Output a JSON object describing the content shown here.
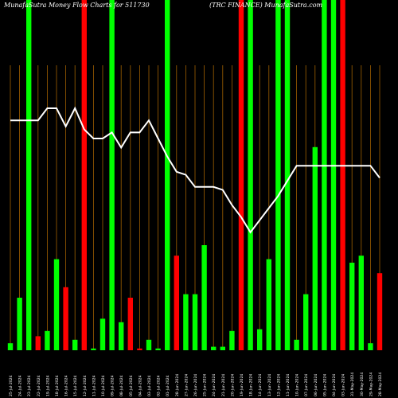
{
  "chart_data": {
    "type": "bar",
    "title_left": "MunafaSutra  Money Flow  Charts for 511730",
    "title_right": "(TRC FINANCE) MunafaSutra.com",
    "colors": {
      "up": "#00ff00",
      "down": "#ff0000",
      "grid": "#a06000",
      "line": "#ffffff",
      "background": "#000000"
    },
    "ylim": [
      0,
      100
    ],
    "price_ylim": [
      0,
      100
    ],
    "bars": [
      {
        "date": "25 Jul 2024",
        "value": 2,
        "dir": "up"
      },
      {
        "date": "24 Jul 2024",
        "value": 15,
        "dir": "up"
      },
      {
        "date": "23 Jul 2024",
        "value": 100,
        "dir": "up"
      },
      {
        "date": "22 Jul 2024",
        "value": 4,
        "dir": "down"
      },
      {
        "date": "19 Jul 2024",
        "value": 5.5,
        "dir": "up"
      },
      {
        "date": "18 Jul 2024",
        "value": 26,
        "dir": "up"
      },
      {
        "date": "16 Jul 2024",
        "value": 18,
        "dir": "down"
      },
      {
        "date": "15 Jul 2024",
        "value": 3,
        "dir": "up"
      },
      {
        "date": "12 Jul 2024",
        "value": 100,
        "dir": "down"
      },
      {
        "date": "11 Jul 2024",
        "value": 0.5,
        "dir": "up"
      },
      {
        "date": "10 Jul 2024",
        "value": 9,
        "dir": "up"
      },
      {
        "date": "09 Jul 2024",
        "value": 100,
        "dir": "up"
      },
      {
        "date": "08 Jul 2024",
        "value": 8,
        "dir": "up"
      },
      {
        "date": "05 Jul 2024",
        "value": 15,
        "dir": "down"
      },
      {
        "date": "04 Jul 2024",
        "value": 0.5,
        "dir": "down"
      },
      {
        "date": "03 Jul 2024",
        "value": 3,
        "dir": "up"
      },
      {
        "date": "02 Jul 2024",
        "value": 0.5,
        "dir": "up"
      },
      {
        "date": "01 Jul 2024",
        "value": 100,
        "dir": "up"
      },
      {
        "date": "28 Jun 2024",
        "value": 27,
        "dir": "down"
      },
      {
        "date": "27 Jun 2024",
        "value": 16,
        "dir": "up"
      },
      {
        "date": "26 Jun 2024",
        "value": 16,
        "dir": "up"
      },
      {
        "date": "25 Jun 2024",
        "value": 30,
        "dir": "up"
      },
      {
        "date": "24 Jun 2024",
        "value": 1,
        "dir": "up"
      },
      {
        "date": "21 Jun 2024",
        "value": 1,
        "dir": "up"
      },
      {
        "date": "20 Jun 2024",
        "value": 5.5,
        "dir": "up"
      },
      {
        "date": "19 Jun 2024",
        "value": 100,
        "dir": "down"
      },
      {
        "date": "18 Jun 2024",
        "value": 100,
        "dir": "up"
      },
      {
        "date": "14 Jun 2024",
        "value": 6,
        "dir": "up"
      },
      {
        "date": "13 Jun 2024",
        "value": 26,
        "dir": "up"
      },
      {
        "date": "12 Jun 2024",
        "value": 100,
        "dir": "up"
      },
      {
        "date": "11 Jun 2024",
        "value": 100,
        "dir": "up"
      },
      {
        "date": "10 Jun 2024",
        "value": 3,
        "dir": "up"
      },
      {
        "date": "07 Jun 2024",
        "value": 16,
        "dir": "up"
      },
      {
        "date": "06 Jun 2024",
        "value": 58,
        "dir": "up"
      },
      {
        "date": "05 Jun 2024",
        "value": 100,
        "dir": "up"
      },
      {
        "date": "04 Jun 2024",
        "value": 100,
        "dir": "up"
      },
      {
        "date": "03 Jun 2024",
        "value": 100,
        "dir": "down"
      },
      {
        "date": "31 May 2024",
        "value": 25,
        "dir": "up"
      },
      {
        "date": "30 May 2024",
        "value": 27,
        "dir": "up"
      },
      {
        "date": "29 May 2024",
        "value": 2,
        "dir": "up"
      },
      {
        "date": "28 May 2024",
        "value": 22,
        "dir": "down"
      }
    ],
    "price_line": [
      {
        "index": 0,
        "value": 76
      },
      {
        "index": 1,
        "value": 76
      },
      {
        "index": 2,
        "value": 76
      },
      {
        "index": 3,
        "value": 76
      },
      {
        "index": 4,
        "value": 80
      },
      {
        "index": 5,
        "value": 80
      },
      {
        "index": 6,
        "value": 74
      },
      {
        "index": 7,
        "value": 80
      },
      {
        "index": 8,
        "value": 73
      },
      {
        "index": 9,
        "value": 70
      },
      {
        "index": 10,
        "value": 70
      },
      {
        "index": 11,
        "value": 72
      },
      {
        "index": 12,
        "value": 67
      },
      {
        "index": 13,
        "value": 72
      },
      {
        "index": 14,
        "value": 72
      },
      {
        "index": 15,
        "value": 76
      },
      {
        "index": 16,
        "value": 70
      },
      {
        "index": 17,
        "value": 64
      },
      {
        "index": 18,
        "value": 59
      },
      {
        "index": 19,
        "value": 58
      },
      {
        "index": 20,
        "value": 54
      },
      {
        "index": 21,
        "value": 54
      },
      {
        "index": 22,
        "value": 54
      },
      {
        "index": 23,
        "value": 53
      },
      {
        "index": 24,
        "value": 48
      },
      {
        "index": 25,
        "value": 44
      },
      {
        "index": 26,
        "value": 39
      },
      {
        "index": 27,
        "value": 43
      },
      {
        "index": 28,
        "value": 47
      },
      {
        "index": 29,
        "value": 51
      },
      {
        "index": 30,
        "value": 56
      },
      {
        "index": 31,
        "value": 61
      },
      {
        "index": 32,
        "value": 61
      },
      {
        "index": 33,
        "value": 61
      },
      {
        "index": 34,
        "value": 61
      },
      {
        "index": 35,
        "value": 61
      },
      {
        "index": 36,
        "value": 61
      },
      {
        "index": 37,
        "value": 61
      },
      {
        "index": 38,
        "value": 61
      },
      {
        "index": 39,
        "value": 61
      },
      {
        "index": 40,
        "value": 57
      }
    ],
    "x_ticks": [
      "25-Jul-2024",
      "24-Jul-2024",
      "23-Jul-2024",
      "22-Jul-2024",
      "19-Jul-2024",
      "18-Jul-2024",
      "16-Jul-2024",
      "15-Jul-2024",
      "12-Jul-2024",
      "11-Jul-2024",
      "10-Jul-2024",
      "09-Jul-2024",
      "08-Jul-2024",
      "05-Jul-2024",
      "04-Jul-2024",
      "03-Jul-2024",
      "02-Jul-2024",
      "01-Jul-2024",
      "28-Jun-2024",
      "27-Jun-2024",
      "26-Jun-2024",
      "25-Jun-2024",
      "24-Jun-2024",
      "21-Jun-2024",
      "20-Jun-2024",
      "19-Jun-2024",
      "18-Jun-2024",
      "14-Jun-2024",
      "13-Jun-2024",
      "12-Jun-2024",
      "11-Jun-2024",
      "10-Jun-2024",
      "07-Jun-2024",
      "06-Jun-2024",
      "05-Jun-2024",
      "04-Jun-2024",
      "03-Jun-2024",
      "31-May-2024",
      "30-May-2024",
      "29-May-2024",
      "28-May-2024"
    ]
  }
}
